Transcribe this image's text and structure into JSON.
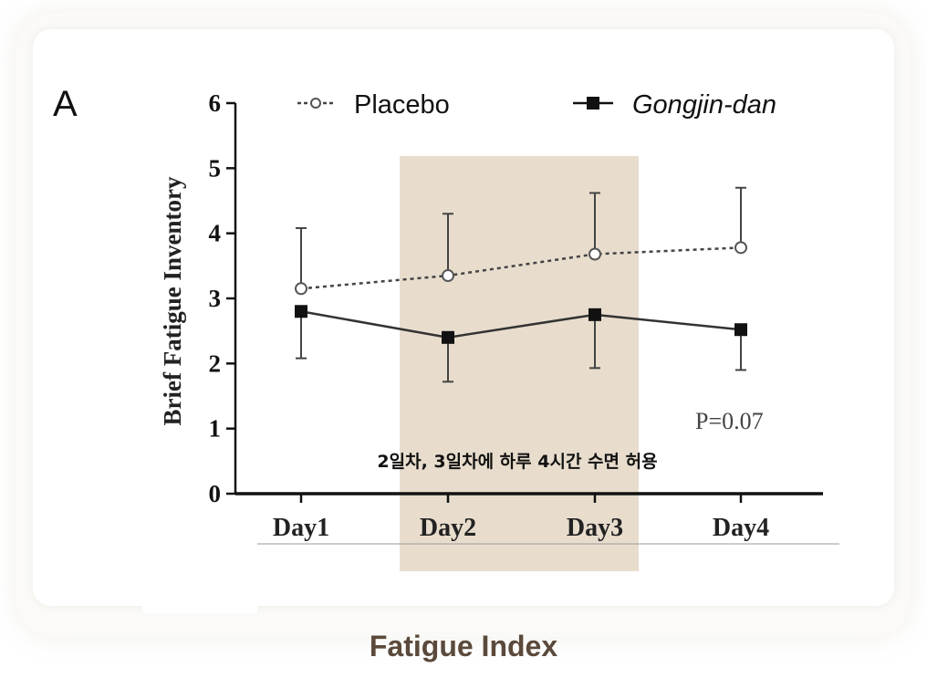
{
  "panel_label": "A",
  "caption": "Fatigue Index",
  "annotation": "2일차, 3일차에 하루 4시간 수면 허용",
  "p_value_text": "P=0.07",
  "colors": {
    "highlight": "#e8ddcd",
    "caption": "#5b4a3c",
    "series": "#333333"
  },
  "chart_data": {
    "type": "line",
    "title": "",
    "xlabel": "",
    "ylabel": "Brief Fatigue Inventory",
    "categories": [
      "Day1",
      "Day2",
      "Day3",
      "Day4"
    ],
    "ylim": [
      0,
      6
    ],
    "yticks": [
      0,
      1,
      2,
      3,
      4,
      5,
      6
    ],
    "legend": "top",
    "highlight_categories": [
      "Day2",
      "Day3"
    ],
    "series": [
      {
        "name": "Placebo",
        "marker": "open-circle",
        "line": "dotted",
        "values": [
          3.15,
          3.35,
          3.68,
          3.78
        ],
        "error_upper": [
          4.08,
          4.3,
          4.62,
          4.7
        ]
      },
      {
        "name": "Gongjin-dan",
        "marker": "filled-square",
        "line": "solid",
        "values": [
          2.8,
          2.4,
          2.75,
          2.52
        ],
        "error_upper": [
          2.8,
          2.4,
          2.75,
          2.52
        ],
        "error_lower": [
          2.08,
          1.72,
          1.93,
          1.9
        ]
      }
    ]
  }
}
